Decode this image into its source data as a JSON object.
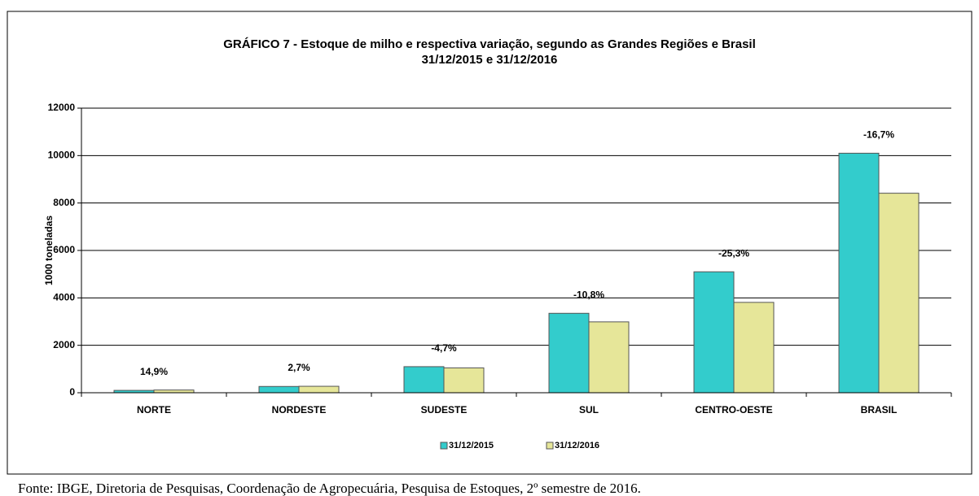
{
  "chart_data": {
    "type": "bar",
    "title": "GRÁFICO 7 - Estoque de milho e respectiva variação, segundo as Grandes Regiões e Brasil",
    "subtitle": "31/12/2015 e 31/12/2016",
    "y_label": "1000 toneladas",
    "categories": [
      "NORTE",
      "NORDESTE",
      "SUDESTE",
      "SUL",
      "CENTRO-OESTE",
      "BRASIL"
    ],
    "series": [
      {
        "name": "31/12/2015",
        "color": "#33cccc",
        "values": [
          100,
          265,
          1100,
          3350,
          5100,
          10100
        ]
      },
      {
        "name": "31/12/2016",
        "color": "#e6e699",
        "values": [
          115,
          272,
          1048,
          2988,
          3810,
          8413
        ]
      }
    ],
    "variation_labels": [
      "14,9%",
      "2,7%",
      "-4,7%",
      "-10,8%",
      "-25,3%",
      "-16,7%"
    ],
    "ylim": [
      0,
      12000
    ],
    "yticks": [
      0,
      2000,
      4000,
      6000,
      8000,
      10000,
      12000
    ],
    "grid": true,
    "legend": "bottom"
  },
  "source": "Fonte: IBGE, Diretoria de Pesquisas, Coordenação de Agropecuária, Pesquisa de Estoques, 2º semestre de 2016."
}
